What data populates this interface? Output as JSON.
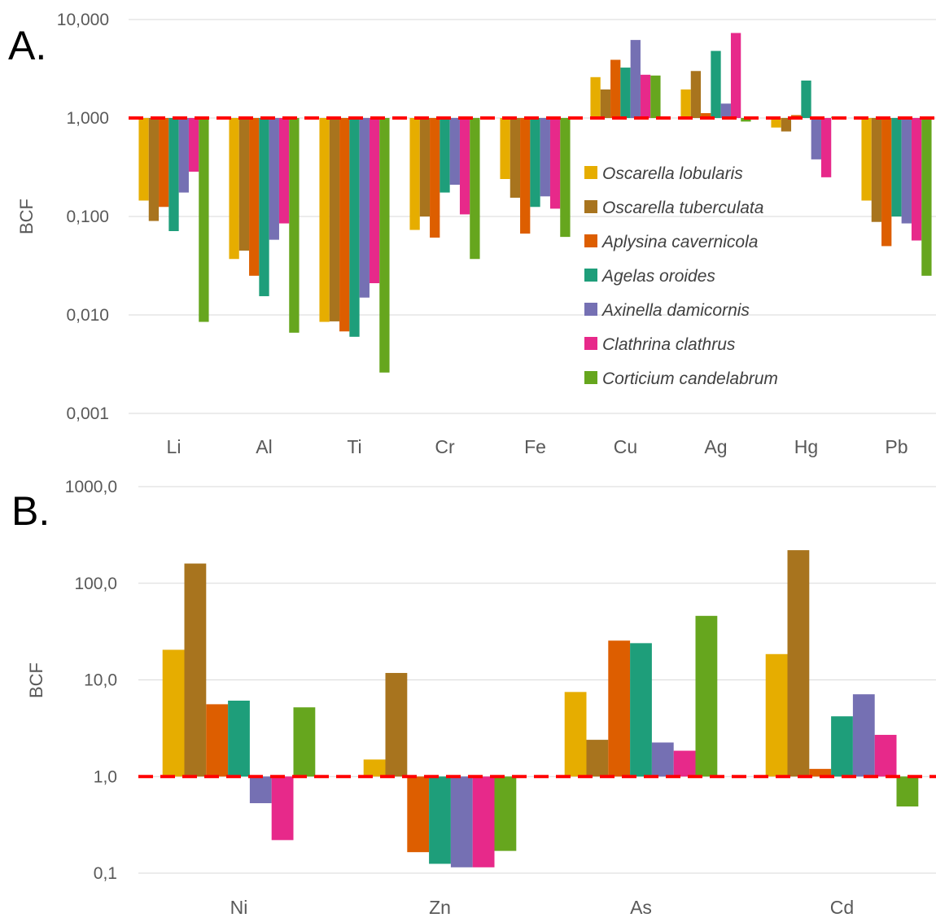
{
  "chart_data": [
    {
      "panel_label": "A.",
      "type": "bar",
      "y_scale": "log",
      "ylabel": "BCF",
      "ylim": [
        0.001,
        10
      ],
      "y_ticks": [
        0.001,
        0.01,
        0.1,
        1,
        10
      ],
      "y_tick_labels": [
        "0,001",
        "0,010",
        "0,100",
        "1,000",
        "10,000"
      ],
      "baseline": 1,
      "reference_line": {
        "value": 1,
        "style": "red dashed"
      },
      "grid": true,
      "categories": [
        "Li",
        "Al",
        "Ti",
        "Cr",
        "Fe",
        "Cu",
        "Ag",
        "Hg",
        "Pb"
      ],
      "legend": {
        "position": "inside-right"
      },
      "series": [
        {
          "name": "Oscarella lobularis",
          "color": "#E6AD00",
          "values": [
            0.145,
            0.037,
            0.0085,
            0.073,
            0.24,
            2.6,
            1.95,
            0.8,
            0.145
          ]
        },
        {
          "name": "Oscarella tuberculata",
          "color": "#A8741E",
          "values": [
            0.09,
            0.045,
            0.0086,
            0.1,
            0.155,
            1.95,
            3.0,
            0.73,
            0.088
          ]
        },
        {
          "name": "Aplysina cavernicola",
          "color": "#DD5E00",
          "values": [
            0.125,
            0.025,
            0.0068,
            0.061,
            0.067,
            3.9,
            1.12,
            1.07,
            0.05
          ]
        },
        {
          "name": "Agelas oroides",
          "color": "#1E9E7A",
          "values": [
            0.071,
            0.0155,
            0.006,
            0.175,
            0.125,
            3.25,
            4.8,
            2.4,
            0.1
          ]
        },
        {
          "name": "Axinella damicornis",
          "color": "#7570B3",
          "values": [
            0.175,
            0.058,
            0.015,
            0.21,
            0.16,
            6.2,
            1.4,
            0.38,
            0.085
          ]
        },
        {
          "name": "Clathrina clathrus",
          "color": "#E7298A",
          "values": [
            0.285,
            0.085,
            0.021,
            0.105,
            0.12,
            2.75,
            7.3,
            0.25,
            0.057
          ]
        },
        {
          "name": "Corticium candelabrum",
          "color": "#66A61E",
          "values": [
            0.0085,
            0.0066,
            0.0026,
            0.037,
            0.062,
            2.7,
            0.92,
            1.03,
            0.025
          ]
        }
      ]
    },
    {
      "panel_label": "B.",
      "type": "bar",
      "y_scale": "log",
      "ylabel": "BCF",
      "ylim": [
        0.1,
        1000
      ],
      "y_ticks": [
        0.1,
        1,
        10,
        100,
        1000
      ],
      "y_tick_labels": [
        "0,1",
        "1,0",
        "10,0",
        "100,0",
        "1000,0"
      ],
      "baseline": 1,
      "reference_line": {
        "value": 1,
        "style": "red dashed"
      },
      "grid": true,
      "categories": [
        "Ni",
        "Zn",
        "As",
        "Cd"
      ],
      "series": [
        {
          "name": "Oscarella lobularis",
          "color": "#E6AD00",
          "values": [
            20.5,
            1.5,
            7.5,
            18.5
          ]
        },
        {
          "name": "Oscarella tuberculata",
          "color": "#A8741E",
          "values": [
            160,
            11.8,
            2.4,
            220
          ]
        },
        {
          "name": "Aplysina cavernicola",
          "color": "#DD5E00",
          "values": [
            5.6,
            0.165,
            25.5,
            1.2
          ]
        },
        {
          "name": "Agelas oroides",
          "color": "#1E9E7A",
          "values": [
            6.1,
            0.125,
            24,
            4.2
          ]
        },
        {
          "name": "Axinella damicornis",
          "color": "#7570B3",
          "values": [
            0.53,
            0.115,
            2.25,
            7.1
          ]
        },
        {
          "name": "Clathrina clathrus",
          "color": "#E7298A",
          "values": [
            0.22,
            0.115,
            1.85,
            2.7
          ]
        },
        {
          "name": "Corticium candelabrum",
          "color": "#66A61E",
          "values": [
            5.2,
            0.17,
            46,
            0.49
          ]
        }
      ]
    }
  ]
}
